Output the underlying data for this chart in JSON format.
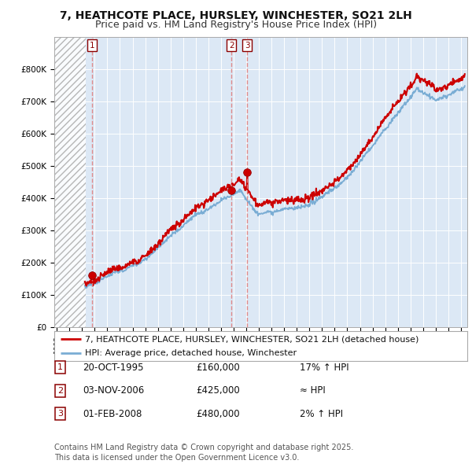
{
  "title": "7, HEATHCOTE PLACE, HURSLEY, WINCHESTER, SO21 2LH",
  "subtitle": "Price paid vs. HM Land Registry's House Price Index (HPI)",
  "ylim": [
    0,
    900000
  ],
  "yticks": [
    0,
    100000,
    200000,
    300000,
    400000,
    500000,
    600000,
    700000,
    800000
  ],
  "ytick_labels": [
    "£0",
    "£100K",
    "£200K",
    "£300K",
    "£400K",
    "£500K",
    "£600K",
    "£700K",
    "£800K"
  ],
  "xlim_start": 1992.8,
  "xlim_end": 2025.5,
  "hatch_end": 1995.3,
  "sale_color": "#cc0000",
  "hpi_color": "#7aadd4",
  "vline_color": "#e08080",
  "background_color": "#ffffff",
  "plot_bg_color": "#dce8f5",
  "legend_sale_label": "7, HEATHCOTE PLACE, HURSLEY, WINCHESTER, SO21 2LH (detached house)",
  "legend_hpi_label": "HPI: Average price, detached house, Winchester",
  "transactions": [
    {
      "id": 1,
      "date_num": 1995.81,
      "price": 160000,
      "date_str": "20-OCT-1995",
      "price_str": "£160,000",
      "rel": "17% ↑ HPI"
    },
    {
      "id": 2,
      "date_num": 2006.84,
      "price": 425000,
      "date_str": "03-NOV-2006",
      "price_str": "£425,000",
      "rel": "≈ HPI"
    },
    {
      "id": 3,
      "date_num": 2008.08,
      "price": 480000,
      "date_str": "01-FEB-2008",
      "price_str": "£480,000",
      "rel": "2% ↑ HPI"
    }
  ],
  "footer": "Contains HM Land Registry data © Crown copyright and database right 2025.\nThis data is licensed under the Open Government Licence v3.0.",
  "title_fontsize": 10,
  "subtitle_fontsize": 9,
  "tick_fontsize": 7.5,
  "legend_fontsize": 8,
  "table_fontsize": 8.5,
  "footer_fontsize": 7
}
